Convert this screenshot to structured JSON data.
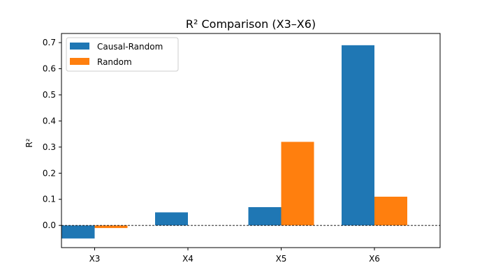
{
  "chart_data": {
    "type": "bar",
    "title": "R² Comparison (X3–X6)",
    "xlabel": "",
    "ylabel": "R²",
    "categories": [
      "X3",
      "X4",
      "X5",
      "X6"
    ],
    "series": [
      {
        "name": "Causal-Random",
        "values": [
          -0.05,
          0.05,
          0.07,
          0.69
        ],
        "color": "#1f77b4"
      },
      {
        "name": "Random",
        "values": [
          -0.01,
          0.0,
          0.32,
          0.11
        ],
        "color": "#ff7f0e"
      }
    ],
    "ylim": [
      -0.085,
      0.735
    ],
    "yticks": [
      "0.0",
      "0.1",
      "0.2",
      "0.3",
      "0.4",
      "0.5",
      "0.6",
      "0.7"
    ],
    "zero_line": "dashed",
    "grid": false,
    "legend_position": "top-left"
  }
}
